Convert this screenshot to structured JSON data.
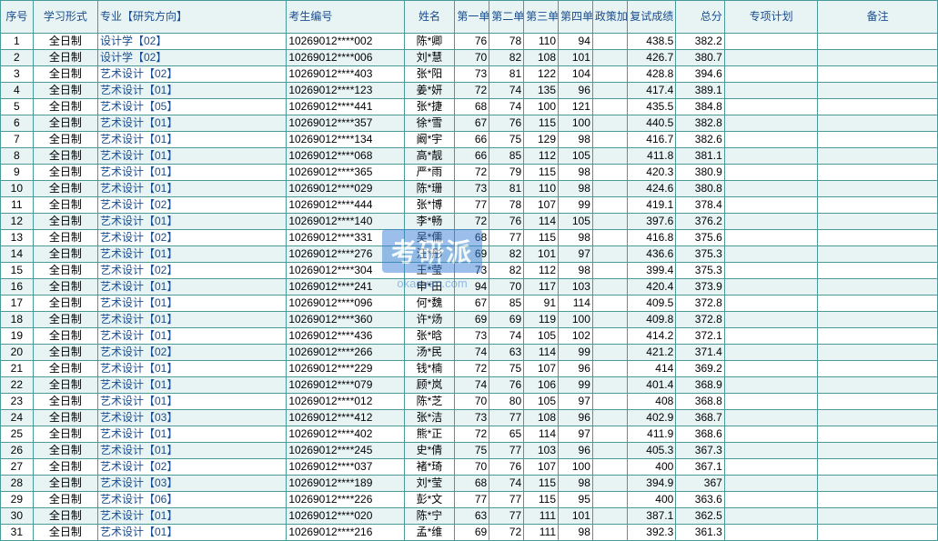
{
  "headers": [
    "序号",
    "学习形式",
    "专业【研究方向】",
    "考生编号",
    "姓名",
    "第一单元",
    "第二单元",
    "第三单元",
    "第四单元",
    "政策加分",
    "复试成绩",
    "总分",
    "专项计划",
    "备注"
  ],
  "col_classes": [
    "c-idx",
    "c-form",
    "c-major",
    "c-exam",
    "c-name",
    "c-u",
    "c-u",
    "c-u",
    "c-u",
    "c-pol",
    "c-re",
    "c-tot",
    "c-plan",
    "c-note"
  ],
  "watermark": {
    "logo": "考研派",
    "url": "okaoyan.com"
  },
  "rows": [
    [
      "1",
      "全日制",
      "设计学【02】",
      "10269012****002",
      "陈*卿",
      "76",
      "78",
      "110",
      "94",
      "",
      "438.5",
      "382.2",
      "",
      ""
    ],
    [
      "2",
      "全日制",
      "设计学【02】",
      "10269012****006",
      "刘*慧",
      "70",
      "82",
      "108",
      "101",
      "",
      "426.7",
      "380.7",
      "",
      ""
    ],
    [
      "3",
      "全日制",
      "艺术设计【02】",
      "10269012****403",
      "张*阳",
      "73",
      "81",
      "122",
      "104",
      "",
      "428.8",
      "394.6",
      "",
      ""
    ],
    [
      "4",
      "全日制",
      "艺术设计【01】",
      "10269012****123",
      "姜*妍",
      "72",
      "74",
      "135",
      "96",
      "",
      "417.4",
      "389.1",
      "",
      ""
    ],
    [
      "5",
      "全日制",
      "艺术设计【05】",
      "10269012****441",
      "张*捷",
      "68",
      "74",
      "100",
      "121",
      "",
      "435.5",
      "384.8",
      "",
      ""
    ],
    [
      "6",
      "全日制",
      "艺术设计【01】",
      "10269012****357",
      "徐*雪",
      "67",
      "76",
      "115",
      "100",
      "",
      "440.5",
      "382.8",
      "",
      ""
    ],
    [
      "7",
      "全日制",
      "艺术设计【01】",
      "10269012****134",
      "阚*宇",
      "66",
      "75",
      "129",
      "98",
      "",
      "416.7",
      "382.6",
      "",
      ""
    ],
    [
      "8",
      "全日制",
      "艺术设计【01】",
      "10269012****068",
      "高*靓",
      "66",
      "85",
      "112",
      "105",
      "",
      "411.8",
      "381.1",
      "",
      ""
    ],
    [
      "9",
      "全日制",
      "艺术设计【01】",
      "10269012****365",
      "严*雨",
      "72",
      "79",
      "115",
      "98",
      "",
      "420.3",
      "380.9",
      "",
      ""
    ],
    [
      "10",
      "全日制",
      "艺术设计【01】",
      "10269012****029",
      "陈*珊",
      "73",
      "81",
      "110",
      "98",
      "",
      "424.6",
      "380.8",
      "",
      ""
    ],
    [
      "11",
      "全日制",
      "艺术设计【02】",
      "10269012****444",
      "张*博",
      "77",
      "78",
      "107",
      "99",
      "",
      "419.1",
      "378.4",
      "",
      ""
    ],
    [
      "12",
      "全日制",
      "艺术设计【01】",
      "10269012****140",
      "李*畅",
      "72",
      "76",
      "114",
      "105",
      "",
      "397.6",
      "376.2",
      "",
      ""
    ],
    [
      "13",
      "全日制",
      "艺术设计【02】",
      "10269012****331",
      "吴*儒",
      "68",
      "77",
      "115",
      "98",
      "",
      "416.8",
      "375.6",
      "",
      ""
    ],
    [
      "14",
      "全日制",
      "艺术设计【01】",
      "10269012****276",
      "汪*彤",
      "69",
      "82",
      "101",
      "97",
      "",
      "436.6",
      "375.3",
      "",
      ""
    ],
    [
      "15",
      "全日制",
      "艺术设计【02】",
      "10269012****304",
      "王*莹",
      "73",
      "82",
      "112",
      "98",
      "",
      "399.4",
      "375.3",
      "",
      ""
    ],
    [
      "16",
      "全日制",
      "艺术设计【01】",
      "10269012****241",
      "申*田",
      "94",
      "70",
      "117",
      "103",
      "",
      "420.4",
      "373.9",
      "",
      ""
    ],
    [
      "17",
      "全日制",
      "艺术设计【01】",
      "10269012****096",
      "何*魏",
      "67",
      "85",
      "91",
      "114",
      "",
      "409.5",
      "372.8",
      "",
      ""
    ],
    [
      "18",
      "全日制",
      "艺术设计【01】",
      "10269012****360",
      "许*炀",
      "69",
      "69",
      "119",
      "100",
      "",
      "409.8",
      "372.8",
      "",
      ""
    ],
    [
      "19",
      "全日制",
      "艺术设计【01】",
      "10269012****436",
      "张*晗",
      "73",
      "74",
      "105",
      "102",
      "",
      "414.2",
      "372.1",
      "",
      ""
    ],
    [
      "20",
      "全日制",
      "艺术设计【02】",
      "10269012****266",
      "汤*民",
      "74",
      "63",
      "114",
      "99",
      "",
      "421.2",
      "371.4",
      "",
      ""
    ],
    [
      "21",
      "全日制",
      "艺术设计【01】",
      "10269012****229",
      "钱*楠",
      "72",
      "75",
      "107",
      "96",
      "",
      "414",
      "369.2",
      "",
      ""
    ],
    [
      "22",
      "全日制",
      "艺术设计【01】",
      "10269012****079",
      "顾*岚",
      "74",
      "76",
      "106",
      "99",
      "",
      "401.4",
      "368.9",
      "",
      ""
    ],
    [
      "23",
      "全日制",
      "艺术设计【01】",
      "10269012****012",
      "陈*芝",
      "70",
      "80",
      "105",
      "97",
      "",
      "408",
      "368.8",
      "",
      ""
    ],
    [
      "24",
      "全日制",
      "艺术设计【03】",
      "10269012****412",
      "张*洁",
      "73",
      "77",
      "108",
      "96",
      "",
      "402.9",
      "368.7",
      "",
      ""
    ],
    [
      "25",
      "全日制",
      "艺术设计【01】",
      "10269012****402",
      "熊*正",
      "72",
      "65",
      "114",
      "97",
      "",
      "411.9",
      "368.6",
      "",
      ""
    ],
    [
      "26",
      "全日制",
      "艺术设计【01】",
      "10269012****245",
      "史*倩",
      "75",
      "77",
      "103",
      "96",
      "",
      "405.3",
      "367.3",
      "",
      ""
    ],
    [
      "27",
      "全日制",
      "艺术设计【02】",
      "10269012****037",
      "褚*琦",
      "70",
      "76",
      "107",
      "100",
      "",
      "400",
      "367.1",
      "",
      ""
    ],
    [
      "28",
      "全日制",
      "艺术设计【03】",
      "10269012****189",
      "刘*莹",
      "68",
      "74",
      "115",
      "98",
      "",
      "394.9",
      "367",
      "",
      ""
    ],
    [
      "29",
      "全日制",
      "艺术设计【06】",
      "10269012****226",
      "彭*文",
      "77",
      "77",
      "115",
      "95",
      "",
      "400",
      "363.6",
      "",
      ""
    ],
    [
      "30",
      "全日制",
      "艺术设计【01】",
      "10269012****020",
      "陈*宁",
      "63",
      "77",
      "111",
      "101",
      "",
      "387.1",
      "362.5",
      "",
      ""
    ],
    [
      "31",
      "全日制",
      "艺术设计【01】",
      "10269012****216",
      "孟*维",
      "69",
      "72",
      "111",
      "98",
      "",
      "392.3",
      "361.3",
      "",
      ""
    ]
  ],
  "styles": {
    "border_color": "#4a9a9a",
    "header_bg": "#e8f4f4",
    "header_color": "#1a4d8f",
    "stripe_bg": "#e8f4f4",
    "row_bg": "#ffffff",
    "font_size": 12
  }
}
